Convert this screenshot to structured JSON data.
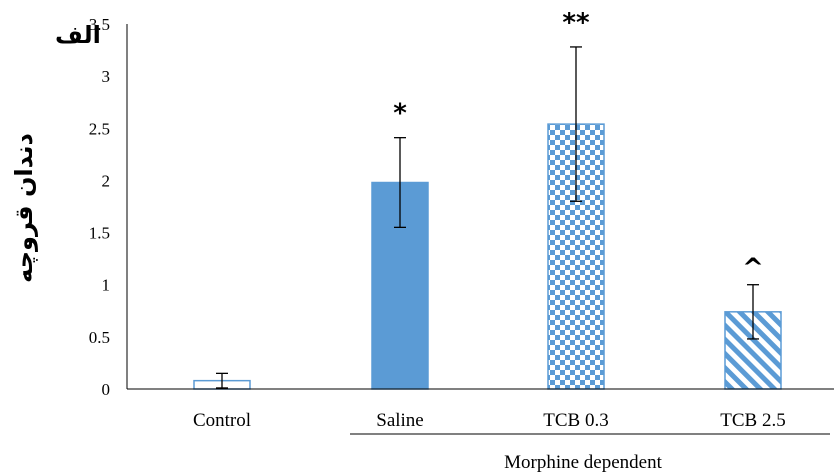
{
  "chart_data": {
    "type": "bar",
    "panel_label": "الف",
    "ylabel": "دندان قروچه",
    "xlabel": "",
    "group_label": "Morphine dependent",
    "ylim": [
      0,
      3.5
    ],
    "yticks": [
      "0",
      "0.5",
      "1",
      "1.5",
      "2",
      "2.5",
      "3",
      "3.5"
    ],
    "categories": [
      "Control",
      "Saline",
      "TCB 0.3",
      "TCB 2.5"
    ],
    "values": [
      0.08,
      1.98,
      2.54,
      0.74
    ],
    "error": [
      0.07,
      0.43,
      0.74,
      0.26
    ],
    "significance": [
      "",
      "*",
      "**",
      "^"
    ],
    "fill_patterns": [
      "outline",
      "solid",
      "checker",
      "diagonal"
    ],
    "bar_color": "#5b9bd5",
    "grid": false
  }
}
